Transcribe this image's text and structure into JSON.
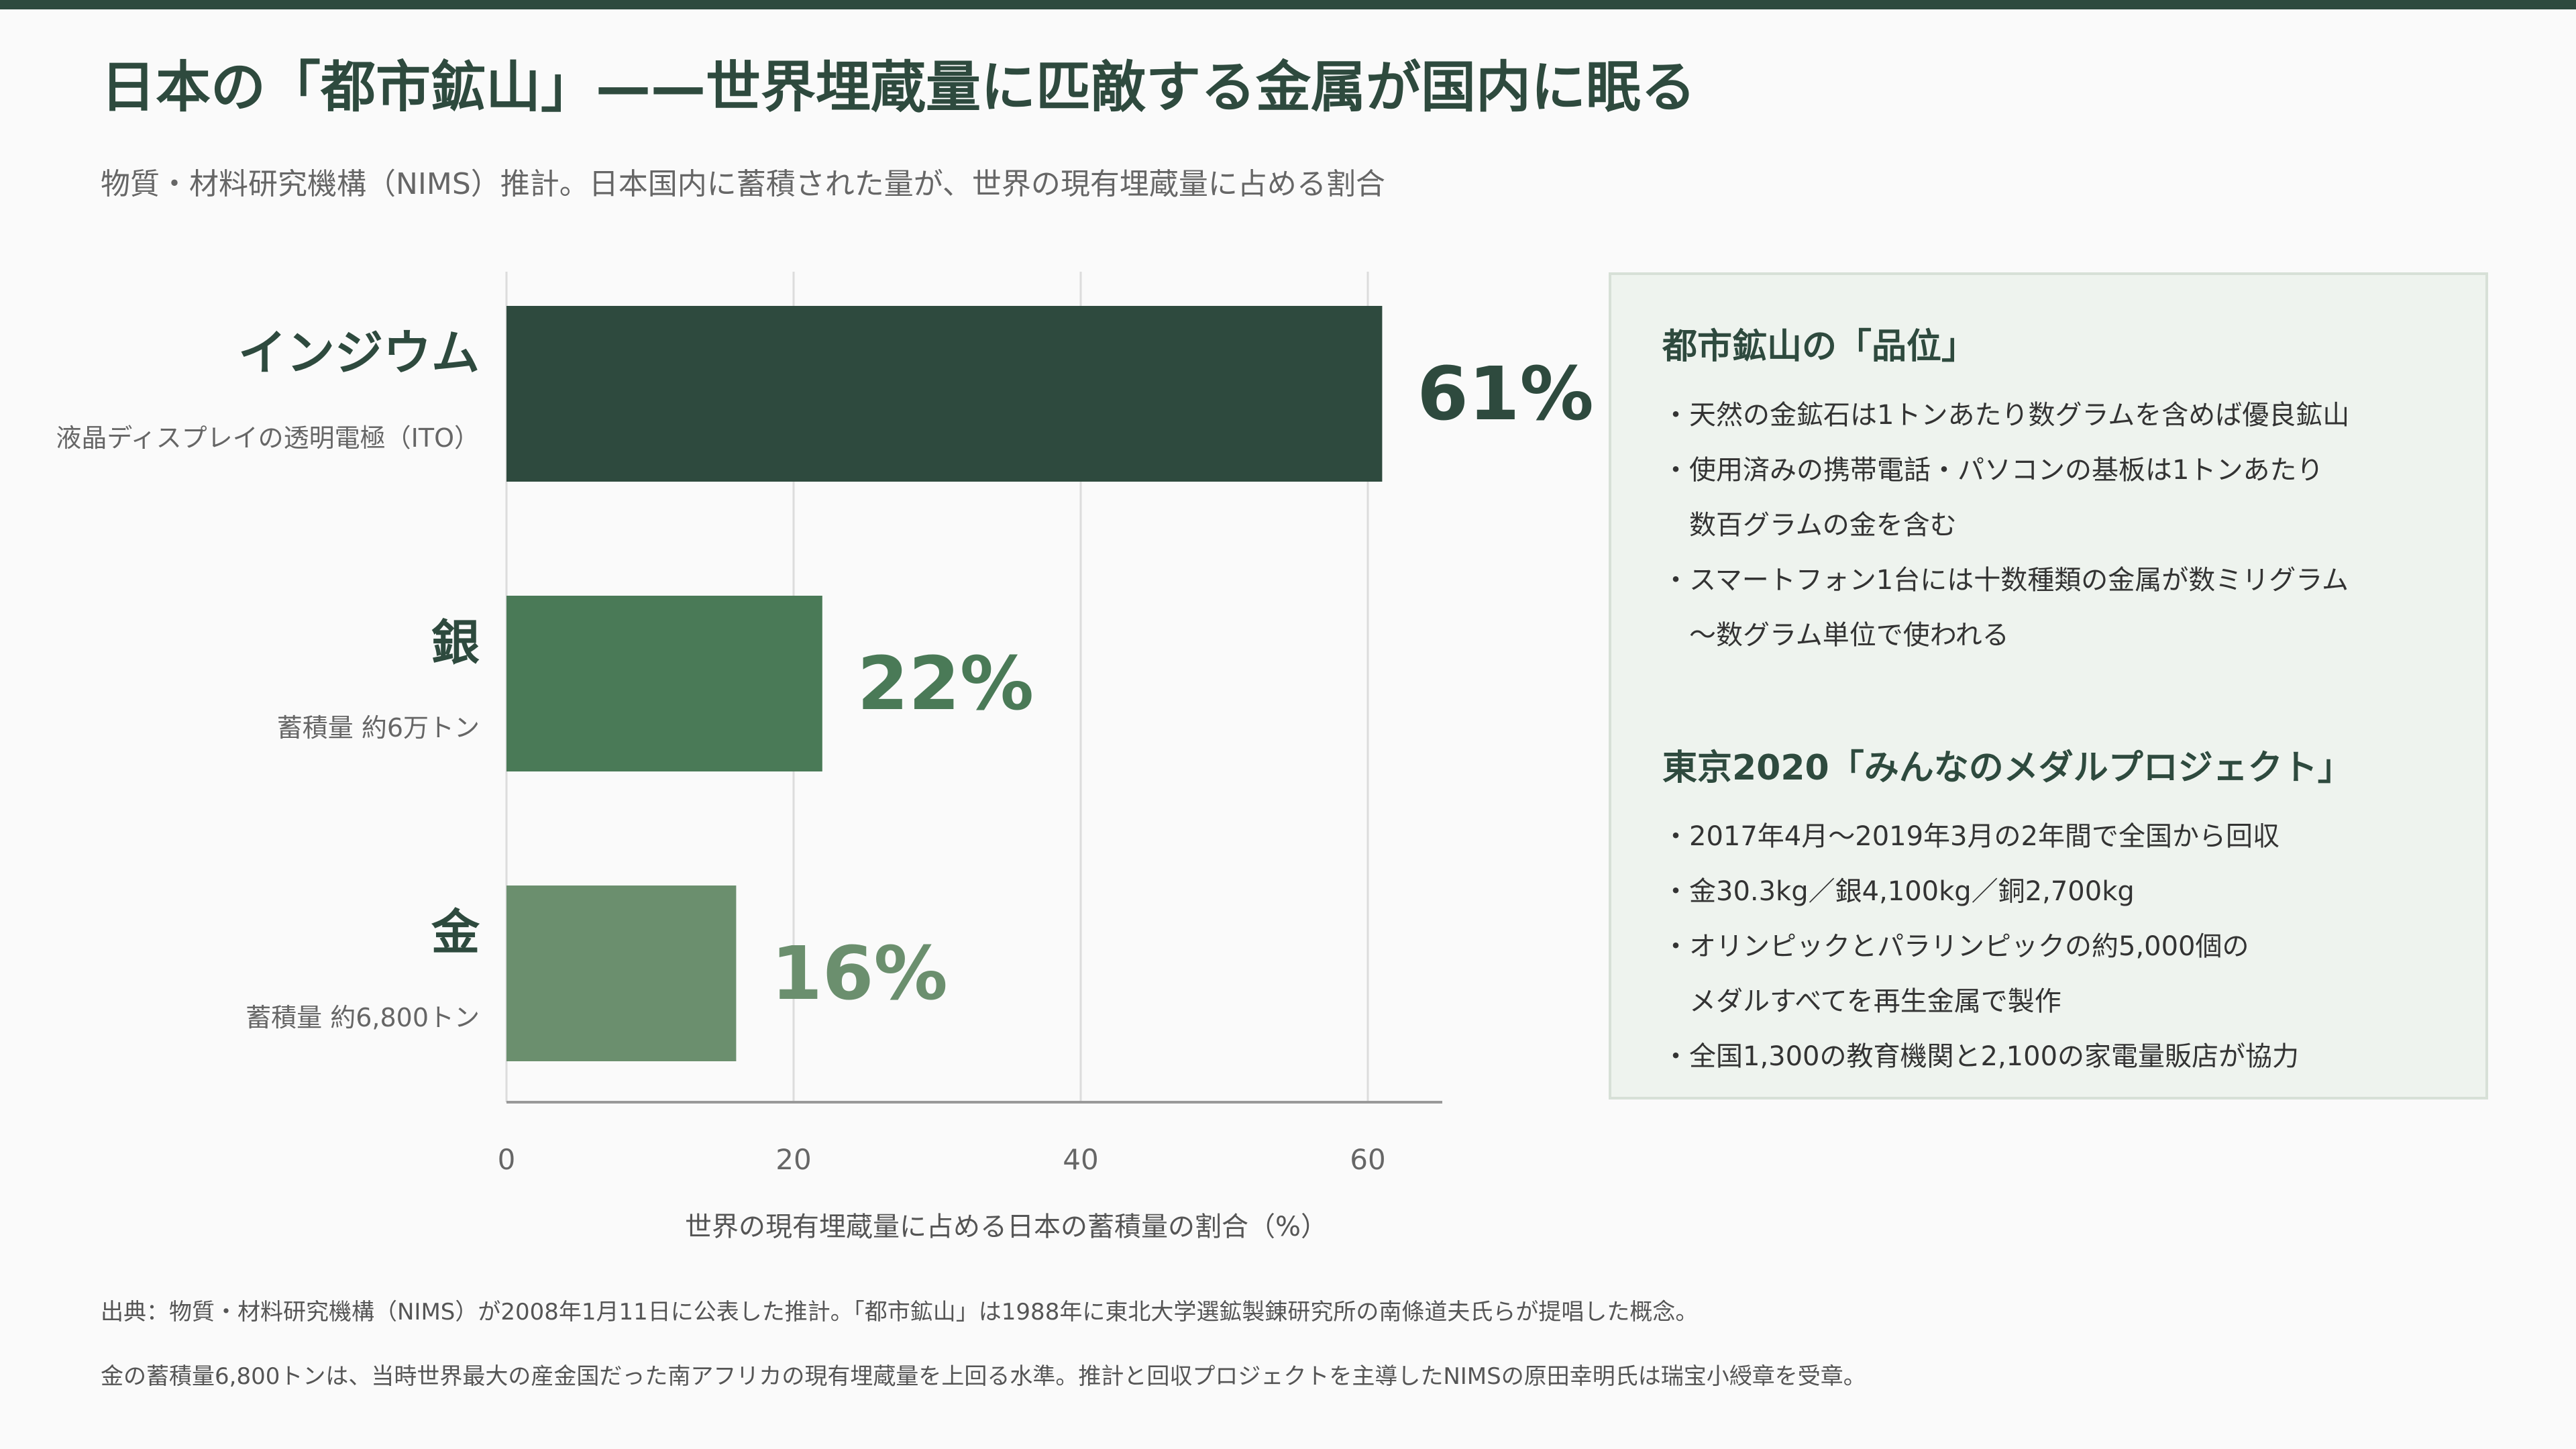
{
  "title": "日本の「都市鉱山」——世界埋蔵量に匹敵する金属が国内に眠る",
  "subtitle": "物質・材料研究機構（NIMS）推計。日本国内に蓄積された量が、世界の現有埋蔵量に占める割合",
  "colors": {
    "dark": "#2e4a3e",
    "medium": "#4a7a57",
    "light": "#6b8f6e"
  },
  "chart_data": {
    "type": "bar",
    "orientation": "horizontal",
    "categories": [
      "インジウム",
      "銀",
      "金"
    ],
    "category_notes": [
      "液晶ディスプレイの透明電極（ITO）",
      "蓄積量 約6万トン",
      "蓄積量 約6,800トン"
    ],
    "values": [
      61,
      22,
      16
    ],
    "value_labels": [
      "61%",
      "22%",
      "16%"
    ],
    "bar_colors": [
      "#2e4a3e",
      "#4a7a57",
      "#6b8f6e"
    ],
    "xlabel": "世界の現有埋蔵量に占める日本の蓄積量の割合（%）",
    "xlim": [
      0,
      65
    ],
    "xticks": [
      0,
      20,
      40,
      60
    ],
    "xtick_labels": [
      "0",
      "20",
      "40",
      "60"
    ],
    "grid": true
  },
  "side": {
    "section1": {
      "heading": "都市鉱山の「品位」",
      "bullets": [
        "・天然の金鉱石は1トンあたり数グラムを含めば優良鉱山",
        "・使用済みの携帯電話・パソコンの基板は1トンあたり\n　数百グラムの金を含む",
        "・スマートフォン1台には十数種類の金属が数ミリグラム\n　〜数グラム単位で使われる"
      ]
    },
    "section2": {
      "heading": "東京2020「みんなのメダルプロジェクト」",
      "bullets": [
        "・2017年4月〜2019年3月の2年間で全国から回収",
        "・金30.3kg／銀4,100kg／銅2,700kg",
        "・オリンピックとパラリンピックの約5,000個の\n　メダルすべてを再生金属で製作",
        "・全国1,300の教育機関と2,100の家電量販店が協力"
      ]
    }
  },
  "footnotes": [
    "出典：物質・材料研究機構（NIMS）が2008年1月11日に公表した推計。「都市鉱山」は1988年に東北大学選鉱製錬研究所の南條道夫氏らが提唱した概念。",
    "金の蓄積量6,800トンは、当時世界最大の産金国だった南アフリカの現有埋蔵量を上回る水準。推計と回収プロジェクトを主導したNIMSの原田幸明氏は瑞宝小綬章を受章。"
  ]
}
